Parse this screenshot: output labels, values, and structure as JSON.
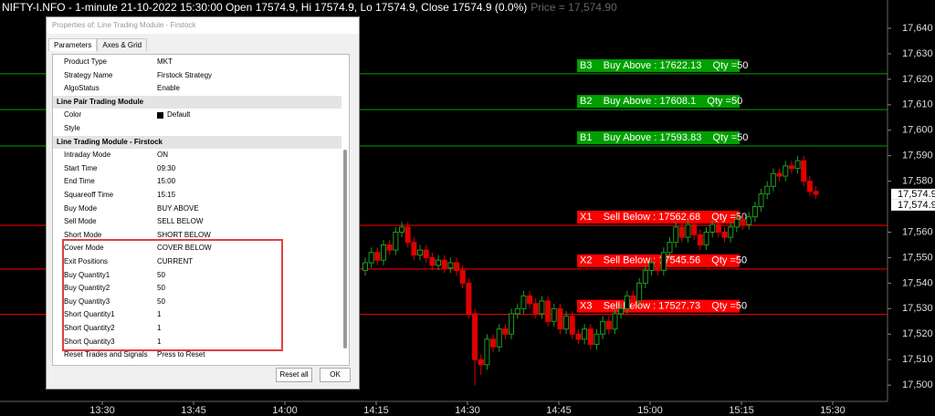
{
  "header": {
    "symbol_info": "NIFTY-I.NFO - 1-minute 21-10-2022 15:30:00 Open 17574.9, Hi 17574.9, Lo 17574.9, Close 17574.9 (0.0%)",
    "price_info": "Price = 17,574.90"
  },
  "chart_data": {
    "type": "candlestick",
    "ylim": [
      17493.6,
      17651.1
    ],
    "yticks": [
      {
        "value": 17500,
        "label": "17,500"
      },
      {
        "value": 17510,
        "label": "17,510"
      },
      {
        "value": 17520,
        "label": "17,520"
      },
      {
        "value": 17530,
        "label": "17,530"
      },
      {
        "value": 17540,
        "label": "17,540"
      },
      {
        "value": 17550,
        "label": "17,550"
      },
      {
        "value": 17560,
        "label": "17,560"
      },
      {
        "value": 17580,
        "label": "17,580"
      },
      {
        "value": 17590,
        "label": "17,590"
      },
      {
        "value": 17600,
        "label": "17,600"
      },
      {
        "value": 17610,
        "label": "17,610"
      },
      {
        "value": 17620,
        "label": "17,620"
      },
      {
        "value": 17630,
        "label": "17,630"
      },
      {
        "value": 17640,
        "label": "17,640"
      }
    ],
    "xticks": [
      "13:30",
      "13:45",
      "14:00",
      "14:15",
      "14:30",
      "14:45",
      "15:00",
      "15:15",
      "15:30"
    ],
    "up_color": "#1f9e1f",
    "down_color": "#e00000",
    "candles": [
      [
        17545,
        17550,
        17543,
        17548
      ],
      [
        17548,
        17554,
        17546,
        17552
      ],
      [
        17552,
        17554,
        17547,
        17549
      ],
      [
        17549,
        17557,
        17547,
        17555
      ],
      [
        17555,
        17557,
        17551,
        17553
      ],
      [
        17553,
        17562,
        17551,
        17560
      ],
      [
        17560,
        17564,
        17558,
        17562
      ],
      [
        17562,
        17564,
        17554,
        17556
      ],
      [
        17556,
        17558,
        17549,
        17551
      ],
      [
        17551,
        17555,
        17549,
        17553
      ],
      [
        17553,
        17555,
        17548,
        17550
      ],
      [
        17550,
        17552,
        17545,
        17547
      ],
      [
        17547,
        17551,
        17545,
        17549
      ],
      [
        17549,
        17551,
        17544,
        17546
      ],
      [
        17546,
        17550,
        17544,
        17548
      ],
      [
        17548,
        17550,
        17543,
        17545
      ],
      [
        17545,
        17547,
        17538,
        17540
      ],
      [
        17540,
        17542,
        17526,
        17528
      ],
      [
        17528,
        17530,
        17500,
        17510
      ],
      [
        17510,
        17512,
        17504,
        17508
      ],
      [
        17508,
        17520,
        17506,
        17518
      ],
      [
        17518,
        17520,
        17513,
        17515
      ],
      [
        17515,
        17524,
        17513,
        17522
      ],
      [
        17522,
        17524,
        17518,
        17520
      ],
      [
        17520,
        17530,
        17518,
        17528
      ],
      [
        17528,
        17532,
        17526,
        17530
      ],
      [
        17530,
        17537,
        17528,
        17535
      ],
      [
        17535,
        17537,
        17530,
        17532
      ],
      [
        17532,
        17534,
        17526,
        17528
      ],
      [
        17528,
        17535,
        17526,
        17533
      ],
      [
        17533,
        17535,
        17523,
        17525
      ],
      [
        17525,
        17532,
        17523,
        17530
      ],
      [
        17530,
        17532,
        17520,
        17522
      ],
      [
        17522,
        17529,
        17520,
        17527
      ],
      [
        17527,
        17529,
        17518,
        17520
      ],
      [
        17520,
        17522,
        17516,
        17518
      ],
      [
        17518,
        17524,
        17516,
        17522
      ],
      [
        17522,
        17524,
        17514,
        17516
      ],
      [
        17516,
        17522,
        17514,
        17520
      ],
      [
        17520,
        17527,
        17518,
        17525
      ],
      [
        17525,
        17527,
        17520,
        17522
      ],
      [
        17522,
        17530,
        17520,
        17528
      ],
      [
        17528,
        17532,
        17526,
        17530
      ],
      [
        17530,
        17537,
        17528,
        17535
      ],
      [
        17535,
        17537,
        17531,
        17533
      ],
      [
        17533,
        17542,
        17531,
        17540
      ],
      [
        17540,
        17547,
        17538,
        17545
      ],
      [
        17545,
        17550,
        17543,
        17548
      ],
      [
        17548,
        17550,
        17543,
        17545
      ],
      [
        17545,
        17554,
        17543,
        17552
      ],
      [
        17552,
        17558,
        17550,
        17556
      ],
      [
        17556,
        17564,
        17554,
        17562
      ],
      [
        17562,
        17564,
        17556,
        17558
      ],
      [
        17558,
        17565,
        17556,
        17563
      ],
      [
        17563,
        17565,
        17557,
        17559
      ],
      [
        17559,
        17561,
        17553,
        17555
      ],
      [
        17555,
        17562,
        17553,
        17560
      ],
      [
        17560,
        17565,
        17558,
        17563
      ],
      [
        17563,
        17565,
        17558,
        17560
      ],
      [
        17560,
        17562,
        17556,
        17558
      ],
      [
        17558,
        17564,
        17556,
        17562
      ],
      [
        17562,
        17567,
        17560,
        17565
      ],
      [
        17565,
        17567,
        17561,
        17563
      ],
      [
        17563,
        17568,
        17561,
        17566
      ],
      [
        17566,
        17572,
        17564,
        17570
      ],
      [
        17570,
        17577,
        17568,
        17575
      ],
      [
        17575,
        17580,
        17573,
        17578
      ],
      [
        17578,
        17585,
        17576,
        17583
      ],
      [
        17583,
        17585,
        17580,
        17582
      ],
      [
        17582,
        17588,
        17580,
        17586
      ],
      [
        17586,
        17588,
        17583,
        17585
      ],
      [
        17585,
        17590,
        17583,
        17588
      ],
      [
        17588,
        17590,
        17578,
        17580
      ],
      [
        17580,
        17582,
        17574,
        17576
      ],
      [
        17576,
        17578,
        17573,
        17574.9
      ]
    ],
    "levels": [
      {
        "value": 17622.13,
        "label": "B3    Buy Above : 17622.13    Qty =50",
        "color": "#00a000"
      },
      {
        "value": 17608.1,
        "label": "B2    Buy Above : 17608.1    Qty =50",
        "color": "#00a000"
      },
      {
        "value": 17593.83,
        "label": "B1    Buy Above : 17593.83    Qty =50",
        "color": "#00a000"
      },
      {
        "value": 17562.68,
        "label": "X1    Sell Below : 17562.68    Qty =50",
        "color": "#ff0000"
      },
      {
        "value": 17545.56,
        "label": "X2    Sell Below : 17545.56    Qty =50",
        "color": "#ff0000"
      },
      {
        "value": 17527.73,
        "label": "X3    Sell Below : 17527.73    Qty =50",
        "color": "#ff0000"
      }
    ],
    "price_labels": [
      {
        "value": 17574.9,
        "label": "17,574.9"
      },
      {
        "value": 17574.9,
        "label": "17,574.9"
      }
    ]
  },
  "dialog": {
    "title": "Properties of: Line Trading Module - Firstock",
    "tabs": [
      "Parameters",
      "Axes & Grid"
    ],
    "rows": [
      {
        "name": "Product Type",
        "value": "MKT"
      },
      {
        "name": "Strategy Name",
        "value": "Firstock Strategy"
      },
      {
        "name": "AlgoStatus",
        "value": "Enable"
      },
      {
        "section": "Line Pair Trading Module"
      },
      {
        "name": "Color",
        "value": "Default"
      },
      {
        "name": "Style"
      },
      {
        "section": "Line Trading Module - Firstock"
      },
      {
        "name": "Intraday Mode",
        "value": "ON"
      },
      {
        "name": "Start Time",
        "value": "09:30"
      },
      {
        "name": "End Time",
        "value": "15:00"
      },
      {
        "name": "Squareoff Time",
        "value": "15:15"
      },
      {
        "name": "Buy Mode",
        "value": "BUY ABOVE"
      },
      {
        "name": "Sell Mode",
        "value": "SELL BELOW"
      },
      {
        "name": "Short Mode",
        "value": "SHORT BELOW"
      },
      {
        "name": "Cover Mode",
        "value": "COVER BELOW"
      },
      {
        "name": "Exit Positions",
        "value": "CURRENT"
      },
      {
        "name": "Buy Quantity1",
        "value": "50"
      },
      {
        "name": "Buy Quantity2",
        "value": "50"
      },
      {
        "name": "Buy Quantity3",
        "value": "50"
      },
      {
        "name": "Short Quantity1",
        "value": "1"
      },
      {
        "name": "Short Quantity2",
        "value": "1"
      },
      {
        "name": "Short Quantity3",
        "value": "1"
      },
      {
        "name": "Reset Trades and Signals",
        "value": "Press to Reset"
      }
    ],
    "buttons": [
      "Reset all",
      "OK"
    ]
  }
}
